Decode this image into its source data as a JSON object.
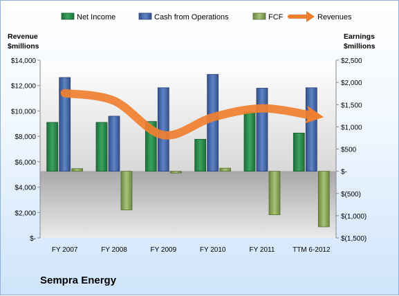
{
  "chart_data": {
    "type": "bar",
    "title": "Sempra Energy",
    "categories": [
      "FY 2007",
      "FY 2008",
      "FY 2009",
      "FY 2010",
      "FY 2011",
      "TTM 6-2012"
    ],
    "left_axis": {
      "label_line1": "Revenue",
      "label_line2": "$millions",
      "range": [
        0,
        14000
      ],
      "ticks": [
        {
          "value": 0,
          "label": "$-"
        },
        {
          "value": 2000,
          "label": "$2,000"
        },
        {
          "value": 4000,
          "label": "$4,000"
        },
        {
          "value": 6000,
          "label": "$6,000"
        },
        {
          "value": 8000,
          "label": "$8,000"
        },
        {
          "value": 10000,
          "label": "$10,000"
        },
        {
          "value": 12000,
          "label": "$12,000"
        },
        {
          "value": 14000,
          "label": "$14,000"
        }
      ]
    },
    "right_axis": {
      "label_line1": "Earnings",
      "label_line2": "$millions",
      "range": [
        -1500,
        2500
      ],
      "ticks": [
        {
          "value": 2500,
          "label": "$2,500"
        },
        {
          "value": 2000,
          "label": "$2,000"
        },
        {
          "value": 1500,
          "label": "$1,500"
        },
        {
          "value": 1000,
          "label": "$1,000"
        },
        {
          "value": 500,
          "label": "$500"
        },
        {
          "value": 0,
          "label": "$-"
        },
        {
          "value": -500,
          "label": "$(500)"
        },
        {
          "value": -1000,
          "label": "$(1,000)"
        },
        {
          "value": -1500,
          "label": "$(1,500)"
        }
      ]
    },
    "series": [
      {
        "name": "Net Income",
        "axis": "right",
        "kind": "bar",
        "values": [
          1100,
          1100,
          1120,
          720,
          1330,
          860
        ]
      },
      {
        "name": "Cash from Operations",
        "axis": "right",
        "kind": "bar",
        "values": [
          2110,
          1240,
          1880,
          2180,
          1870,
          1880
        ]
      },
      {
        "name": "FCF",
        "axis": "right",
        "kind": "bar",
        "values": [
          60,
          -870,
          -40,
          70,
          -980,
          -1250
        ]
      },
      {
        "name": "Revenues",
        "axis": "left",
        "kind": "line",
        "values": [
          11400,
          10800,
          8100,
          9500,
          10200,
          9650
        ]
      }
    ],
    "colors": {
      "Net Income": "#2a8a4a",
      "Cash from Operations": "#4b6fb0",
      "FCF": "#8aa85a",
      "Revenues": "#f08030"
    },
    "legend_position": "top",
    "grid": false
  }
}
